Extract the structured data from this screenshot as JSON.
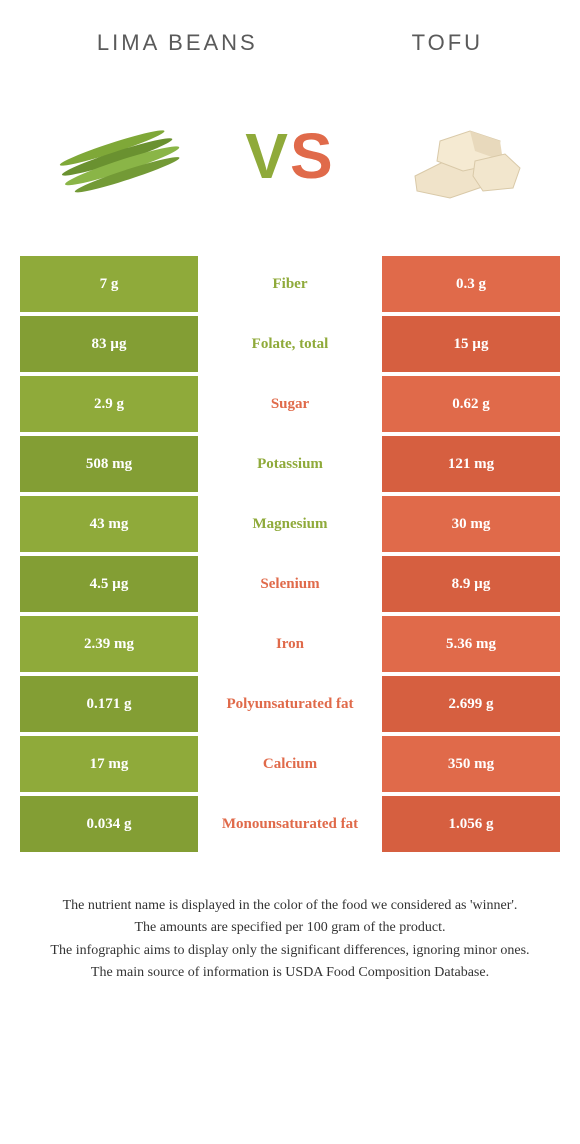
{
  "colors": {
    "left": "#8faa3a",
    "right": "#e06a4a",
    "left_dark": "#839e34",
    "right_dark": "#d65f40",
    "text_grey": "#5a5a5a"
  },
  "header": {
    "left_title": "LIMA BEANS",
    "right_title": "TOFU",
    "vs_v": "V",
    "vs_s": "S"
  },
  "rows": [
    {
      "left": "7 g",
      "label": "Fiber",
      "right": "0.3 g",
      "winner": "left"
    },
    {
      "left": "83 µg",
      "label": "Folate, total",
      "right": "15 µg",
      "winner": "left"
    },
    {
      "left": "2.9 g",
      "label": "Sugar",
      "right": "0.62 g",
      "winner": "right"
    },
    {
      "left": "508 mg",
      "label": "Potassium",
      "right": "121 mg",
      "winner": "left"
    },
    {
      "left": "43 mg",
      "label": "Magnesium",
      "right": "30 mg",
      "winner": "left"
    },
    {
      "left": "4.5 µg",
      "label": "Selenium",
      "right": "8.9 µg",
      "winner": "right"
    },
    {
      "left": "2.39 mg",
      "label": "Iron",
      "right": "5.36 mg",
      "winner": "right"
    },
    {
      "left": "0.171 g",
      "label": "Polyunsaturated fat",
      "right": "2.699 g",
      "winner": "right"
    },
    {
      "left": "17 mg",
      "label": "Calcium",
      "right": "350 mg",
      "winner": "right"
    },
    {
      "left": "0.034 g",
      "label": "Monounsaturated fat",
      "right": "1.056 g",
      "winner": "right"
    }
  ],
  "footer": {
    "line1": "The nutrient name is displayed in the color of the food we considered as 'winner'.",
    "line2": "The amounts are specified per 100 gram of the product.",
    "line3": "The infographic aims to display only the significant differences, ignoring minor ones.",
    "line4": "The main source of information is USDA Food Composition Database."
  }
}
